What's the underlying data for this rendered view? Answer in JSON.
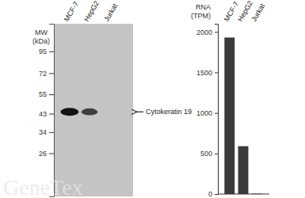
{
  "chart_data": [
    {
      "type": "western_blot",
      "lanes": [
        "MCF-7",
        "HepG2",
        "Jurkat"
      ],
      "y_label": [
        "MW",
        "(kDa)"
      ],
      "log": "y",
      "ylim": [
        15,
        135
      ],
      "yticks": [
        95,
        72,
        55,
        43,
        34,
        26
      ],
      "band_label": "Cytokeratin 19",
      "band_mw": 44,
      "band_intensity": [
        1,
        0.75,
        0
      ]
    },
    {
      "type": "bar",
      "categories": [
        "MCF-7",
        "HepG2",
        "Jurkat"
      ],
      "values": [
        1930,
        590,
        5
      ],
      "y_label": [
        "RNA",
        "(TPM)"
      ],
      "ylim": [
        0,
        2100
      ],
      "yticks": [
        0,
        500,
        1000,
        1500,
        2000
      ],
      "color": "#3a3a3a"
    }
  ],
  "watermark": "GeneTex"
}
